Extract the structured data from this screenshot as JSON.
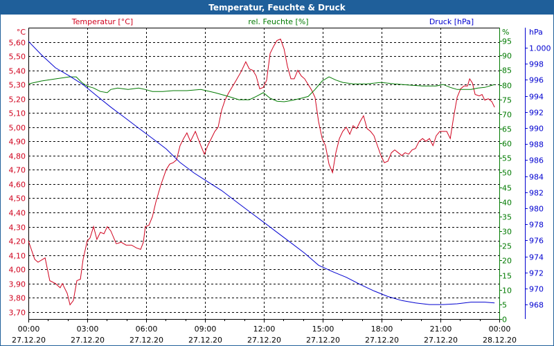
{
  "window": {
    "title": "Temperatur, Feuchte & Druck"
  },
  "colors": {
    "temperature": "#d0001c",
    "humidity": "#007a00",
    "pressure": "#0000d0",
    "titlebar": "#1f5f9a"
  },
  "chart_data": {
    "type": "line",
    "title": "Temperatur, Feuchte & Druck",
    "x_ticks": [
      {
        "time": "00:00",
        "date": "27.12.20"
      },
      {
        "time": "03:00",
        "date": "27.12.20"
      },
      {
        "time": "06:00",
        "date": "27.12.20"
      },
      {
        "time": "09:00",
        "date": "27.12.20"
      },
      {
        "time": "12:00",
        "date": "27.12.20"
      },
      {
        "time": "15:00",
        "date": "27.12.20"
      },
      {
        "time": "18:00",
        "date": "27.12.20"
      },
      {
        "time": "21:00",
        "date": "27.12.20"
      },
      {
        "time": "00:00",
        "date": "28.12.20"
      }
    ],
    "xlim_hours": [
      0,
      24
    ],
    "grid": true,
    "axes": {
      "temperature": {
        "legend": "Temperatur [°C]",
        "unit": "°C",
        "ylim": [
          3.65,
          5.7
        ],
        "ticks": [
          "3,70",
          "3,80",
          "3,90",
          "4,00",
          "4,10",
          "4,20",
          "4,30",
          "4,40",
          "4,50",
          "4,60",
          "4,70",
          "4,80",
          "4,90",
          "5,00",
          "5,10",
          "5,20",
          "5,30",
          "5,40",
          "5,50",
          "5,60"
        ]
      },
      "humidity": {
        "legend": "rel. Feuchte [%]",
        "unit": "%",
        "ylim": [
          0,
          99.5
        ],
        "ticks": [
          "0",
          "5",
          "10",
          "15",
          "20",
          "25",
          "30",
          "35",
          "40",
          "45",
          "50",
          "55",
          "60",
          "65",
          "70",
          "75",
          "80",
          "85",
          "90",
          "95"
        ]
      },
      "pressure": {
        "legend": "Druck [hPa]",
        "unit": "hPa",
        "ylim": [
          966.2,
          1002.5
        ],
        "ticks": [
          "968",
          "970",
          "972",
          "974",
          "976",
          "978",
          "980",
          "982",
          "984",
          "986",
          "988",
          "990",
          "992",
          "994",
          "996",
          "998",
          "1.000"
        ]
      }
    },
    "series": [
      {
        "name": "Temperatur [°C]",
        "axis": "temperature",
        "points": [
          [
            0,
            4.2
          ],
          [
            0.32,
            4.07
          ],
          [
            0.49,
            4.05
          ],
          [
            0.85,
            4.08
          ],
          [
            1.09,
            3.92
          ],
          [
            1.38,
            3.9
          ],
          [
            1.62,
            3.87
          ],
          [
            1.73,
            3.9
          ],
          [
            1.98,
            3.83
          ],
          [
            2.12,
            3.75
          ],
          [
            2.29,
            3.78
          ],
          [
            2.47,
            3.92
          ],
          [
            2.65,
            3.93
          ],
          [
            2.79,
            4.07
          ],
          [
            3.0,
            4.2
          ],
          [
            3.14,
            4.22
          ],
          [
            3.32,
            4.3
          ],
          [
            3.49,
            4.21
          ],
          [
            3.67,
            4.26
          ],
          [
            3.85,
            4.25
          ],
          [
            4.02,
            4.3
          ],
          [
            4.2,
            4.27
          ],
          [
            4.48,
            4.18
          ],
          [
            4.73,
            4.19
          ],
          [
            4.98,
            4.17
          ],
          [
            5.26,
            4.17
          ],
          [
            5.51,
            4.15
          ],
          [
            5.72,
            4.14
          ],
          [
            5.86,
            4.19
          ],
          [
            5.96,
            4.3
          ],
          [
            6.14,
            4.31
          ],
          [
            6.32,
            4.37
          ],
          [
            6.49,
            4.47
          ],
          [
            6.74,
            4.59
          ],
          [
            7.02,
            4.7
          ],
          [
            7.2,
            4.74
          ],
          [
            7.38,
            4.75
          ],
          [
            7.55,
            4.77
          ],
          [
            7.73,
            4.87
          ],
          [
            7.91,
            4.92
          ],
          [
            8.08,
            4.96
          ],
          [
            8.26,
            4.9
          ],
          [
            8.51,
            4.97
          ],
          [
            8.79,
            4.87
          ],
          [
            8.97,
            4.81
          ],
          [
            9.14,
            4.87
          ],
          [
            9.5,
            4.97
          ],
          [
            9.67,
            5.0
          ],
          [
            9.85,
            5.12
          ],
          [
            10.02,
            5.19
          ],
          [
            10.2,
            5.24
          ],
          [
            10.55,
            5.32
          ],
          [
            10.84,
            5.39
          ],
          [
            11.08,
            5.46
          ],
          [
            11.26,
            5.41
          ],
          [
            11.44,
            5.4
          ],
          [
            11.61,
            5.36
          ],
          [
            11.79,
            5.27
          ],
          [
            11.97,
            5.28
          ],
          [
            12.14,
            5.33
          ],
          [
            12.32,
            5.52
          ],
          [
            12.5,
            5.57
          ],
          [
            12.67,
            5.61
          ],
          [
            12.85,
            5.62
          ],
          [
            13.03,
            5.55
          ],
          [
            13.2,
            5.43
          ],
          [
            13.38,
            5.34
          ],
          [
            13.55,
            5.34
          ],
          [
            13.73,
            5.4
          ],
          [
            13.91,
            5.36
          ],
          [
            14.08,
            5.34
          ],
          [
            14.26,
            5.3
          ],
          [
            14.44,
            5.26
          ],
          [
            14.61,
            5.21
          ],
          [
            14.79,
            5.04
          ],
          [
            14.97,
            4.92
          ],
          [
            15.14,
            4.87
          ],
          [
            15.32,
            4.74
          ],
          [
            15.5,
            4.68
          ],
          [
            15.67,
            4.82
          ],
          [
            15.85,
            4.92
          ],
          [
            16.02,
            4.97
          ],
          [
            16.2,
            5.0
          ],
          [
            16.38,
            4.95
          ],
          [
            16.55,
            5.01
          ],
          [
            16.73,
            4.99
          ],
          [
            16.91,
            5.04
          ],
          [
            17.08,
            5.08
          ],
          [
            17.26,
            4.99
          ],
          [
            17.44,
            4.97
          ],
          [
            17.61,
            4.94
          ],
          [
            17.79,
            4.87
          ],
          [
            17.97,
            4.8
          ],
          [
            18.14,
            4.75
          ],
          [
            18.32,
            4.76
          ],
          [
            18.5,
            4.82
          ],
          [
            18.67,
            4.84
          ],
          [
            18.85,
            4.82
          ],
          [
            19.03,
            4.8
          ],
          [
            19.2,
            4.82
          ],
          [
            19.38,
            4.81
          ],
          [
            19.56,
            4.84
          ],
          [
            19.73,
            4.85
          ],
          [
            19.91,
            4.9
          ],
          [
            20.09,
            4.92
          ],
          [
            20.26,
            4.9
          ],
          [
            20.44,
            4.92
          ],
          [
            20.62,
            4.87
          ],
          [
            20.79,
            4.94
          ],
          [
            20.97,
            4.97
          ],
          [
            21.14,
            4.97
          ],
          [
            21.32,
            4.97
          ],
          [
            21.5,
            4.92
          ],
          [
            21.67,
            5.07
          ],
          [
            21.85,
            5.21
          ],
          [
            22.03,
            5.27
          ],
          [
            22.2,
            5.29
          ],
          [
            22.38,
            5.29
          ],
          [
            22.49,
            5.34
          ],
          [
            22.63,
            5.31
          ],
          [
            22.77,
            5.23
          ],
          [
            22.98,
            5.22
          ],
          [
            23.12,
            5.23
          ],
          [
            23.26,
            5.19
          ],
          [
            23.44,
            5.2
          ],
          [
            23.62,
            5.18
          ],
          [
            23.76,
            5.14
          ]
        ]
      },
      {
        "name": "rel. Feuchte [%]",
        "axis": "humidity",
        "points": [
          [
            0,
            80.3
          ],
          [
            0.67,
            81.3
          ],
          [
            1.38,
            82.0
          ],
          [
            2.08,
            82.7
          ],
          [
            2.44,
            82.7
          ],
          [
            2.72,
            80.8
          ],
          [
            2.97,
            79.6
          ],
          [
            3.32,
            78.9
          ],
          [
            3.67,
            77.7
          ],
          [
            4.02,
            77.3
          ],
          [
            4.2,
            78.4
          ],
          [
            4.55,
            78.9
          ],
          [
            5.08,
            78.4
          ],
          [
            5.61,
            78.9
          ],
          [
            5.96,
            78.4
          ],
          [
            6.32,
            77.7
          ],
          [
            6.85,
            77.7
          ],
          [
            7.38,
            78.0
          ],
          [
            8.08,
            78.0
          ],
          [
            8.79,
            78.4
          ],
          [
            9.5,
            77.3
          ],
          [
            10.2,
            76.0
          ],
          [
            10.73,
            74.9
          ],
          [
            11.26,
            74.9
          ],
          [
            11.61,
            76.0
          ],
          [
            11.97,
            77.3
          ],
          [
            12.32,
            75.4
          ],
          [
            12.67,
            74.4
          ],
          [
            13.03,
            74.2
          ],
          [
            13.38,
            74.6
          ],
          [
            13.91,
            75.4
          ],
          [
            14.26,
            76.0
          ],
          [
            14.61,
            78.4
          ],
          [
            14.97,
            81.3
          ],
          [
            15.32,
            82.7
          ],
          [
            15.67,
            81.6
          ],
          [
            16.02,
            80.8
          ],
          [
            16.55,
            80.3
          ],
          [
            17.26,
            80.3
          ],
          [
            17.97,
            80.8
          ],
          [
            18.67,
            80.3
          ],
          [
            19.38,
            79.9
          ],
          [
            20.09,
            79.6
          ],
          [
            20.79,
            79.6
          ],
          [
            21.14,
            80.1
          ],
          [
            21.5,
            79.1
          ],
          [
            21.85,
            78.4
          ],
          [
            22.2,
            78.4
          ],
          [
            22.56,
            78.4
          ],
          [
            22.91,
            78.9
          ],
          [
            23.26,
            79.1
          ],
          [
            23.76,
            80.1
          ]
        ]
      },
      {
        "name": "Druck [hPa]",
        "axis": "pressure",
        "points": [
          [
            0,
            1000.8
          ],
          [
            0.67,
            999.1
          ],
          [
            1.38,
            997.5
          ],
          [
            2.08,
            996.5
          ],
          [
            2.79,
            995.4
          ],
          [
            3.49,
            994.0
          ],
          [
            4.2,
            992.6
          ],
          [
            4.91,
            991.3
          ],
          [
            5.61,
            990.0
          ],
          [
            6.32,
            988.7
          ],
          [
            7.02,
            987.4
          ],
          [
            7.73,
            985.7
          ],
          [
            8.44,
            984.4
          ],
          [
            9.14,
            983.3
          ],
          [
            9.85,
            982.2
          ],
          [
            10.55,
            980.9
          ],
          [
            11.26,
            979.6
          ],
          [
            11.97,
            978.3
          ],
          [
            12.67,
            977.0
          ],
          [
            13.38,
            975.7
          ],
          [
            14.08,
            974.4
          ],
          [
            14.79,
            972.9
          ],
          [
            15.5,
            972.1
          ],
          [
            16.2,
            971.4
          ],
          [
            16.91,
            970.5
          ],
          [
            17.61,
            969.7
          ],
          [
            18.32,
            969.0
          ],
          [
            19.03,
            968.5
          ],
          [
            19.73,
            968.2
          ],
          [
            20.44,
            968.0
          ],
          [
            21.14,
            968.0
          ],
          [
            21.85,
            968.1
          ],
          [
            22.56,
            968.3
          ],
          [
            23.26,
            968.3
          ],
          [
            23.76,
            968.2
          ]
        ]
      }
    ]
  }
}
